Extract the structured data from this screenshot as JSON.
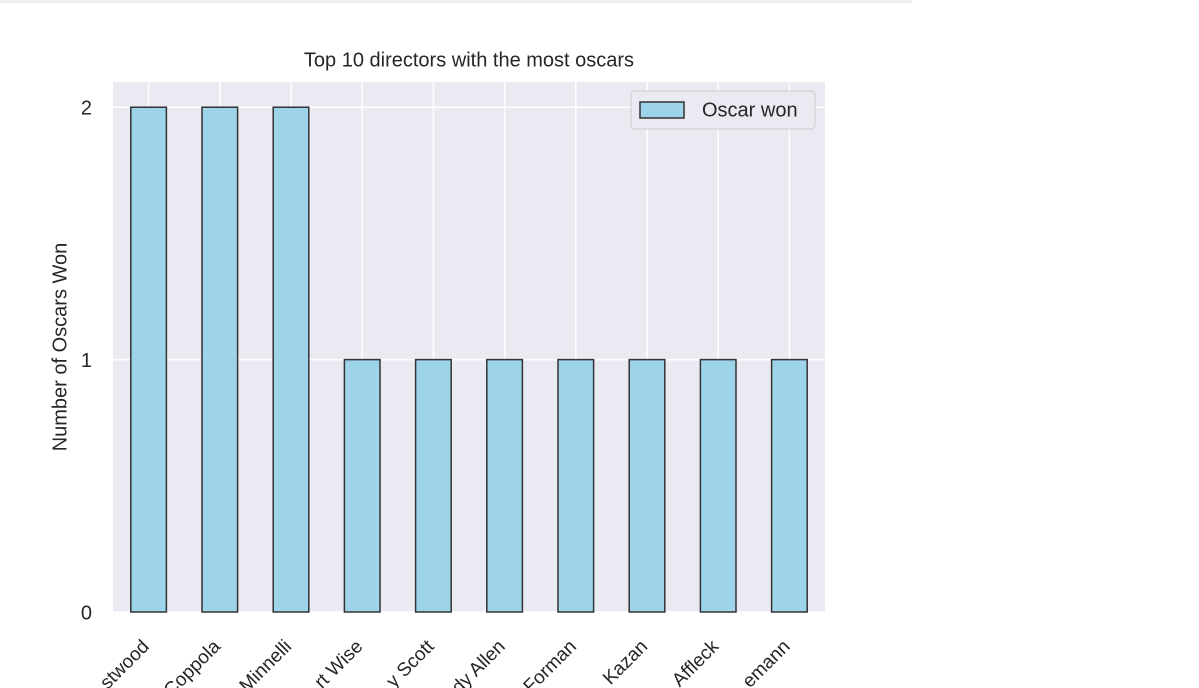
{
  "chart_data": {
    "type": "bar",
    "title": "Top 10 directors with the most oscars",
    "y_label": "Number of Oscars Won",
    "categories": [
      "stwood",
      "Coppola",
      "Minnelli",
      "rt Wise",
      "y Scott",
      "dy Allen",
      "Forman",
      "Kazan",
      "Affleck",
      "emann"
    ],
    "series": [
      {
        "name": "Oscar won",
        "color": "#9dd4ea",
        "values": [
          2,
          2,
          2,
          1,
          1,
          1,
          1,
          1,
          1,
          1
        ]
      }
    ],
    "ylim": [
      0,
      2.1
    ],
    "yticks": [
      0,
      1,
      2
    ],
    "grid": true,
    "legend": "upper right"
  }
}
